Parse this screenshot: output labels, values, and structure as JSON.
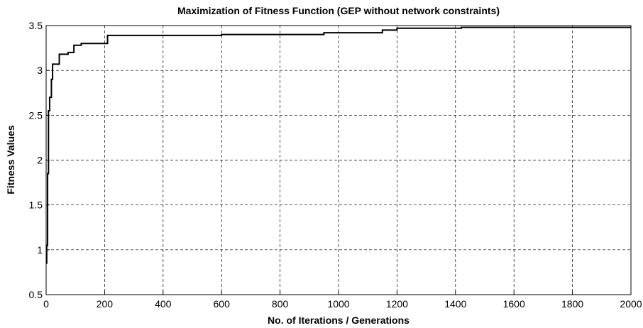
{
  "chart_data": {
    "type": "line",
    "title": "Maximization of Fitness Function (GEP without network constraints)",
    "xlabel": "No. of Iterations / Generations",
    "ylabel": "Fitness Values",
    "x": [
      0,
      2,
      2,
      5,
      5,
      8,
      8,
      12,
      12,
      18,
      18,
      22,
      22,
      45,
      45,
      75,
      75,
      95,
      95,
      120,
      120,
      210,
      210,
      600,
      600,
      950,
      950,
      1150,
      1150,
      1200,
      1200,
      1420,
      1420,
      2000
    ],
    "series": [
      {
        "color": "#000000",
        "values": [
          0.85,
          0.85,
          1.05,
          1.05,
          1.85,
          1.85,
          2.55,
          2.55,
          2.7,
          2.7,
          2.9,
          2.9,
          3.07,
          3.07,
          3.18,
          3.18,
          3.2,
          3.2,
          3.28,
          3.28,
          3.3,
          3.3,
          3.39,
          3.39,
          3.4,
          3.4,
          3.42,
          3.42,
          3.45,
          3.45,
          3.47,
          3.47,
          3.48,
          3.48
        ]
      }
    ],
    "xlim": [
      0,
      2000
    ],
    "xticks": [
      0,
      200,
      400,
      600,
      800,
      1000,
      1200,
      1400,
      1600,
      1800,
      2000
    ],
    "ylim": [
      0.5,
      3.5
    ],
    "yticks": [
      0.5,
      1,
      1.5,
      2,
      2.5,
      3,
      3.5
    ],
    "grid": true
  }
}
